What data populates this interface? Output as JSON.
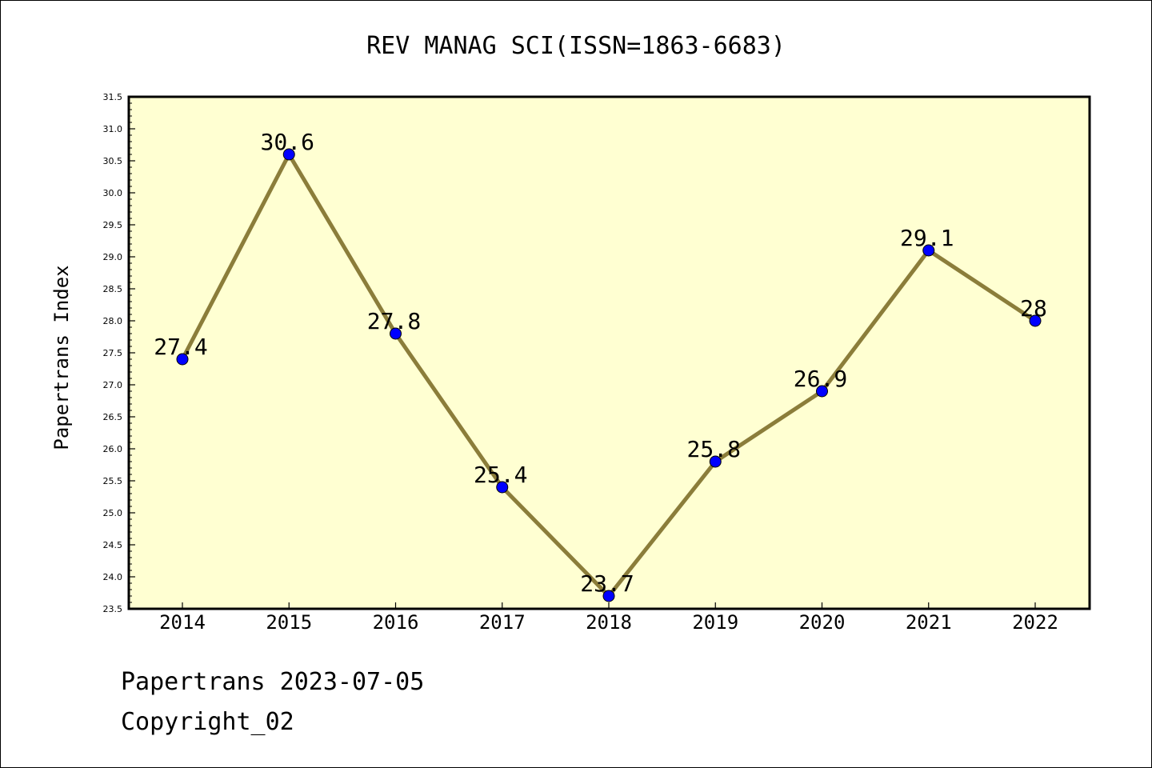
{
  "chart_data": {
    "type": "line",
    "title": "REV MANAG SCI(ISSN=1863-6683)",
    "xlabel": "",
    "ylabel": "Papertrans Index",
    "categories": [
      "2014",
      "2015",
      "2016",
      "2017",
      "2018",
      "2019",
      "2020",
      "2021",
      "2022"
    ],
    "values": [
      27.4,
      30.6,
      27.8,
      25.4,
      23.7,
      25.8,
      26.9,
      29.1,
      28
    ],
    "data_labels": [
      "27.4",
      "30.6",
      "27.8",
      "25.4",
      "23.7",
      "25.8",
      "26.9",
      "29.1",
      "28"
    ],
    "ylim": [
      23.5,
      31.5
    ],
    "yticks": [
      "23.5",
      "24.0",
      "24.5",
      "25.0",
      "25.5",
      "26.0",
      "26.5",
      "27.0",
      "27.5",
      "28.0",
      "28.5",
      "29.0",
      "29.5",
      "30.0",
      "30.5",
      "31.0",
      "31.5"
    ],
    "grid": false,
    "legend": "none",
    "colors": {
      "plot_background": "#ffffd2",
      "line": "#8b7d3a",
      "marker": "#0000ff"
    }
  },
  "footer": {
    "line1": "Papertrans 2023-07-05",
    "line2": "Copyright_02"
  }
}
